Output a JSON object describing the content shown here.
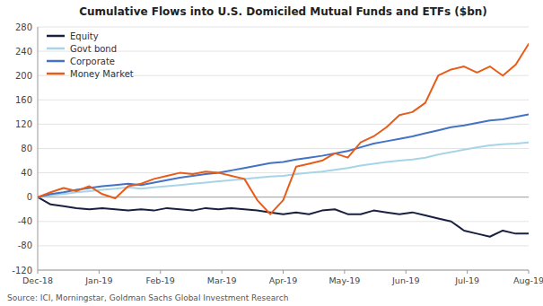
{
  "chart_data": {
    "type": "line",
    "title": "Cumulative Flows into U.S. Domiciled Mutual Funds and ETFs ($bn)",
    "source": "Source: ICI, Morningstar, Goldman Sachs Global Investment Research",
    "x": [
      0,
      0.2105,
      0.4211,
      0.6316,
      0.8421,
      1.0526,
      1.2632,
      1.4737,
      1.6842,
      1.8947,
      2.1053,
      2.3158,
      2.5263,
      2.7368,
      2.9474,
      3.1579,
      3.3684,
      3.5789,
      3.7895,
      4,
      4.2105,
      4.4211,
      4.6316,
      4.8421,
      5.0526,
      5.2632,
      5.4737,
      5.6842,
      5.8947,
      6.1053,
      6.3158,
      6.5263,
      6.7368,
      6.9474,
      7.1579,
      7.3684,
      7.5789,
      7.7895,
      8
    ],
    "xlim": [
      0,
      8
    ],
    "xticks": [
      {
        "value": 0,
        "label": "Dec-18"
      },
      {
        "value": 1,
        "label": "Jan-19"
      },
      {
        "value": 2,
        "label": "Feb-19"
      },
      {
        "value": 3,
        "label": "Mar-19"
      },
      {
        "value": 4,
        "label": "Apr-19"
      },
      {
        "value": 5,
        "label": "May-19"
      },
      {
        "value": 6,
        "label": "Jun-19"
      },
      {
        "value": 7,
        "label": "Jul-19"
      },
      {
        "value": 8,
        "label": "Aug-19"
      }
    ],
    "ylim": [
      -120,
      280
    ],
    "yticks": [
      -120,
      -80,
      -40,
      0,
      40,
      80,
      120,
      160,
      200,
      240,
      280
    ],
    "grid": true,
    "legend": "upper left",
    "series": [
      {
        "name": "Equity",
        "color": "#1a2040",
        "values": [
          0,
          -12,
          -15,
          -18,
          -20,
          -18,
          -20,
          -22,
          -20,
          -22,
          -18,
          -20,
          -22,
          -18,
          -20,
          -18,
          -20,
          -22,
          -25,
          -28,
          -25,
          -28,
          -22,
          -20,
          -28,
          -28,
          -22,
          -25,
          -28,
          -25,
          -30,
          -35,
          -40,
          -55,
          -60,
          -65,
          -55,
          -60,
          -60
        ]
      },
      {
        "name": "Govt bond",
        "color": "#a8d4e8",
        "values": [
          0,
          3,
          5,
          8,
          10,
          12,
          14,
          16,
          14,
          16,
          18,
          20,
          22,
          24,
          26,
          28,
          30,
          32,
          34,
          35,
          38,
          40,
          42,
          45,
          48,
          52,
          55,
          58,
          60,
          62,
          65,
          70,
          74,
          78,
          82,
          85,
          87,
          88,
          90
        ]
      },
      {
        "name": "Corporate",
        "color": "#4472c4",
        "values": [
          0,
          5,
          8,
          12,
          15,
          18,
          20,
          22,
          20,
          24,
          28,
          32,
          35,
          38,
          40,
          44,
          48,
          52,
          56,
          58,
          62,
          65,
          68,
          72,
          76,
          82,
          88,
          92,
          96,
          100,
          105,
          110,
          115,
          118,
          122,
          126,
          128,
          132,
          136
        ]
      },
      {
        "name": "Money Market",
        "color": "#e85c1a",
        "values": [
          0,
          8,
          15,
          10,
          18,
          5,
          -2,
          18,
          22,
          30,
          35,
          40,
          38,
          42,
          40,
          35,
          30,
          -5,
          -28,
          -5,
          50,
          55,
          60,
          72,
          65,
          90,
          100,
          115,
          135,
          140,
          155,
          200,
          210,
          215,
          205,
          215,
          200,
          218,
          252
        ]
      }
    ]
  }
}
